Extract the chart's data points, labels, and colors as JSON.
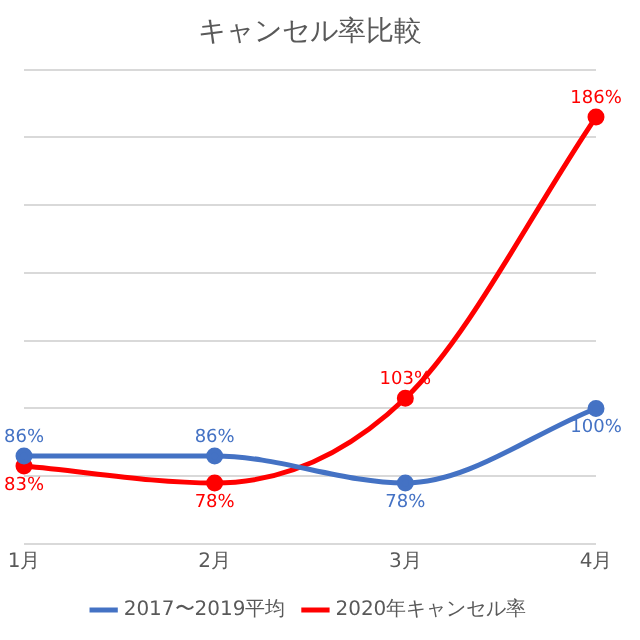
{
  "chart_data": {
    "type": "line",
    "title": "キャンセル率比較",
    "categories": [
      "1月",
      "2月",
      "3月",
      "4月"
    ],
    "series": [
      {
        "name": "2017〜2019平均",
        "color": "#4472c4",
        "values": [
          86,
          86,
          78,
          100
        ],
        "value_labels": [
          "86%",
          "86%",
          "78%",
          "100%"
        ]
      },
      {
        "name": "2020年キャンセル率",
        "color": "#ff0000",
        "values": [
          83,
          78,
          103,
          186
        ],
        "value_labels": [
          "83%",
          "78%",
          "103%",
          "186%"
        ]
      }
    ],
    "tick_labels": "x",
    "grid": "y",
    "legend": "bottom",
    "marker": "circle",
    "line_style": "solid"
  }
}
